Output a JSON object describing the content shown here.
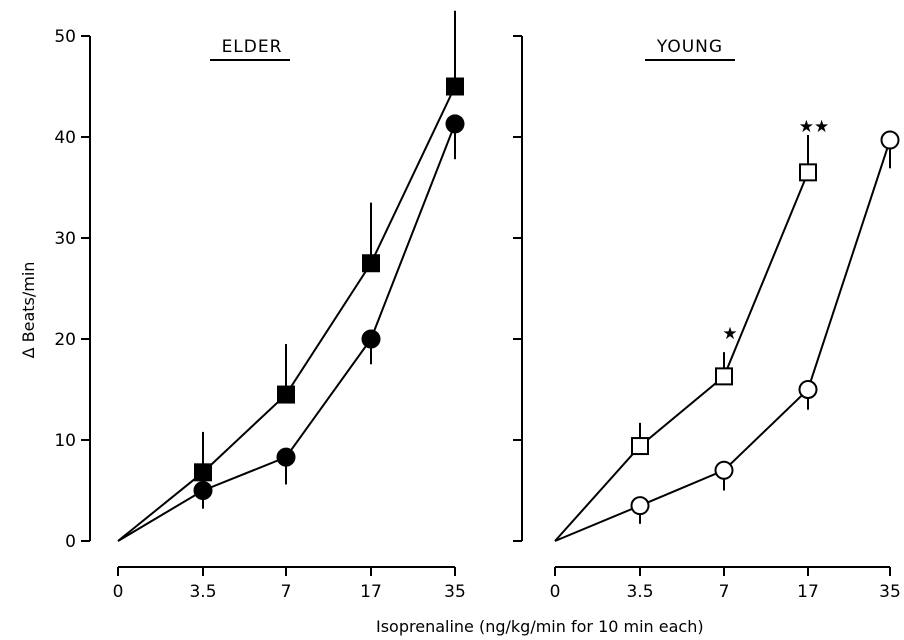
{
  "chart_data": {
    "type": "line",
    "ylabel": "Δ Beats/min",
    "xlabel": "Isoprenaline  (ng/kg/min for 10 min each)",
    "x_categories": [
      "0",
      "3.5",
      "7",
      "17",
      "35"
    ],
    "y_ticks": [
      "0",
      "10",
      "20",
      "30",
      "40",
      "50"
    ],
    "ylim": [
      0,
      50
    ],
    "grid": false,
    "panels": [
      {
        "title": "ELDER",
        "series": [
          {
            "marker": "filled-square",
            "values": [
              0,
              6.8,
              14.5,
              27.5,
              45
            ],
            "errors": [
              0,
              4,
              5,
              6,
              7.5
            ],
            "error_dir": "up"
          },
          {
            "marker": "filled-circle",
            "values": [
              0,
              5,
              8.3,
              20,
              41.3
            ],
            "errors": [
              0,
              1.8,
              2.7,
              2.5,
              3.5
            ],
            "error_dir": "down"
          }
        ],
        "annotations": []
      },
      {
        "title": "YOUNG",
        "series": [
          {
            "marker": "open-square",
            "values": [
              0,
              9.4,
              16.3,
              36.5,
              null
            ],
            "errors": [
              0,
              2.3,
              2.4,
              3.7,
              0
            ],
            "error_dir": "up"
          },
          {
            "marker": "open-circle",
            "values": [
              0,
              3.5,
              7,
              15,
              39.7
            ],
            "errors": [
              0,
              1.8,
              2,
              2,
              2.8
            ],
            "error_dir": "down"
          }
        ],
        "annotations": [
          {
            "text": "★",
            "x_index": 2,
            "y": 20
          },
          {
            "text": "★★",
            "x_index": 3,
            "y": 40.5
          }
        ]
      }
    ]
  }
}
